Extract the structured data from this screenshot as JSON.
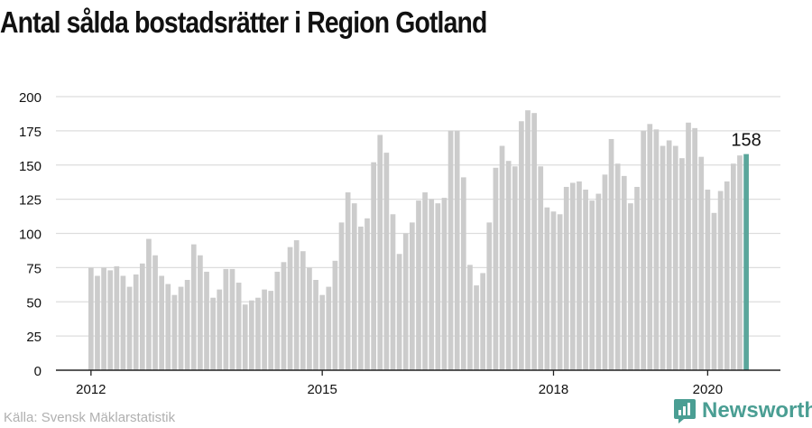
{
  "title": "Antal sålda bostadsrätter i Region Gotland",
  "source": "Källa: Svensk Mäklarstatistik",
  "brand": "Newsworthy",
  "colors": {
    "bar": "#cccccc",
    "highlight": "#5aa69b",
    "grid": "#dddddd",
    "axis": "#222222",
    "brand": "#4a9e93"
  },
  "chart_data": {
    "type": "bar",
    "title": "Antal sålda bostadsrätter i Region Gotland",
    "xlabel": "",
    "ylabel": "",
    "ylim": [
      0,
      200
    ],
    "yticks": [
      0,
      25,
      50,
      75,
      100,
      125,
      150,
      175,
      200
    ],
    "xtick_labels": [
      {
        "label": "2012",
        "index": 0
      },
      {
        "label": "2015",
        "index": 36
      },
      {
        "label": "2018",
        "index": 72
      },
      {
        "label": "2020",
        "index": 96
      }
    ],
    "start": "2012-01",
    "frequency": "monthly",
    "values": [
      75,
      69,
      75,
      73,
      76,
      69,
      61,
      70,
      78,
      96,
      84,
      69,
      63,
      55,
      61,
      66,
      92,
      84,
      72,
      53,
      59,
      74,
      74,
      64,
      48,
      51,
      53,
      59,
      58,
      72,
      79,
      90,
      95,
      87,
      75,
      66,
      55,
      61,
      80,
      108,
      130,
      122,
      105,
      111,
      152,
      172,
      159,
      114,
      85,
      100,
      108,
      124,
      130,
      125,
      122,
      126,
      175,
      175,
      141,
      77,
      62,
      71,
      108,
      148,
      164,
      153,
      149,
      182,
      190,
      188,
      149,
      119,
      116,
      114,
      134,
      137,
      138,
      132,
      124,
      129,
      143,
      169,
      151,
      142,
      122,
      134,
      175,
      180,
      176,
      164,
      168,
      164,
      155,
      181,
      177,
      156,
      132,
      115,
      131,
      138,
      151,
      157,
      158
    ],
    "highlight": {
      "index": 102,
      "label": "158"
    }
  }
}
